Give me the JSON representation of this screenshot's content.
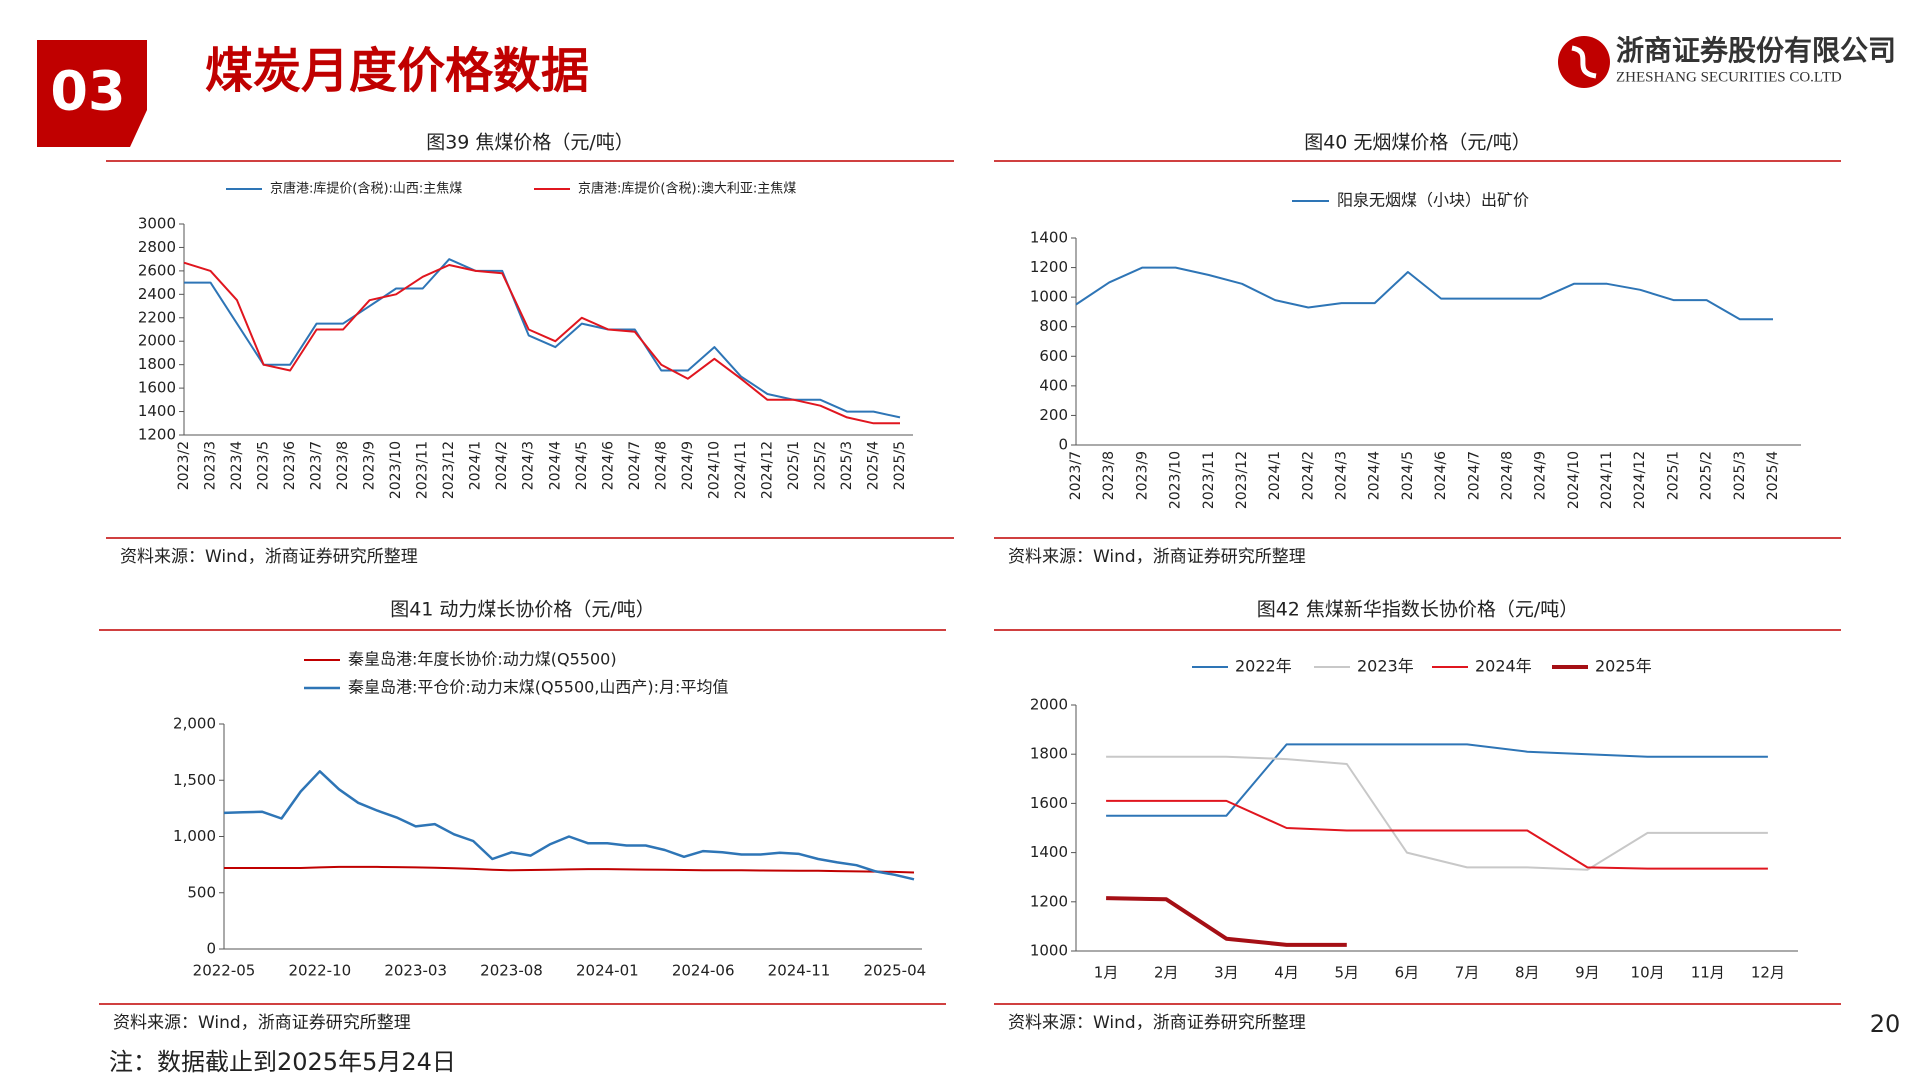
{
  "header": {
    "section": "03",
    "title": "煤炭月度价格数据",
    "company": "浙商证券股份有限公司",
    "company_en": "ZHESHANG SECURITIES CO.LTD"
  },
  "chart_data": [
    {
      "type": "line",
      "title": "图39  焦煤价格（元/吨）",
      "source": "资料来源：Wind，浙商证券研究所整理",
      "legend": "top",
      "categories": [
        "2023/2",
        "2023/3",
        "2023/4",
        "2023/5",
        "2023/6",
        "2023/7",
        "2023/8",
        "2023/9",
        "2023/10",
        "2023/11",
        "2023/12",
        "2024/1",
        "2024/2",
        "2024/3",
        "2024/4",
        "2024/5",
        "2024/6",
        "2024/7",
        "2024/8",
        "2024/9",
        "2024/10",
        "2024/11",
        "2024/12",
        "2025/1",
        "2025/2",
        "2025/3",
        "2025/4",
        "2025/5"
      ],
      "series": [
        {
          "name": "京唐港:库提价(含税):山西:主焦煤",
          "color": "#2e75b6",
          "width": 2,
          "values": [
            2500,
            2500,
            2150,
            1800,
            1800,
            2150,
            2150,
            2300,
            2450,
            2450,
            2700,
            2600,
            2600,
            2050,
            1950,
            2150,
            2100,
            2100,
            1750,
            1750,
            1950,
            1700,
            1550,
            1500,
            1500,
            1400,
            1400,
            1350
          ]
        },
        {
          "name": "京唐港:库提价(含税):澳大利亚:主焦煤",
          "color": "#e0161f",
          "width": 2,
          "values": [
            2670,
            2600,
            2350,
            1800,
            1750,
            2100,
            2100,
            2350,
            2400,
            2550,
            2650,
            2600,
            2580,
            2100,
            2000,
            2200,
            2100,
            2080,
            1800,
            1680,
            1850,
            1680,
            1500,
            1500,
            1450,
            1350,
            1300,
            1300
          ]
        }
      ],
      "ylim": [
        1200,
        3000
      ],
      "yticks": [
        1200,
        1400,
        1600,
        1800,
        2000,
        2200,
        2400,
        2600,
        2800,
        3000
      ]
    },
    {
      "type": "line",
      "title": "图40  无烟煤价格（元/吨）",
      "source": "资料来源：Wind，浙商证券研究所整理",
      "legend": "top",
      "categories": [
        "2023/7",
        "2023/8",
        "2023/9",
        "2023/10",
        "2023/11",
        "2023/12",
        "2024/1",
        "2024/2",
        "2024/3",
        "2024/4",
        "2024/5",
        "2024/6",
        "2024/7",
        "2024/8",
        "2024/9",
        "2024/10",
        "2024/11",
        "2024/12",
        "2025/1",
        "2025/2",
        "2025/3",
        "2025/4"
      ],
      "series": [
        {
          "name": "阳泉无烟煤（小块）出矿价",
          "color": "#2e75b6",
          "width": 2,
          "values": [
            950,
            1100,
            1200,
            1200,
            1150,
            1090,
            980,
            930,
            960,
            960,
            1170,
            990,
            990,
            990,
            990,
            1090,
            1090,
            1050,
            980,
            980,
            850,
            850
          ]
        }
      ],
      "ylim": [
        0,
        1400
      ],
      "yticks": [
        0,
        200,
        400,
        600,
        800,
        1000,
        1200,
        1400
      ]
    },
    {
      "type": "line",
      "title": "图41  动力煤长协价格（元/吨）",
      "source": "资料来源：Wind，浙商证券研究所整理",
      "legend": "top-left",
      "categories": [
        "2022-05",
        null,
        null,
        null,
        null,
        "2022-10",
        null,
        null,
        null,
        null,
        "2023-03",
        null,
        null,
        null,
        null,
        "2023-08",
        null,
        null,
        null,
        null,
        "2024-01",
        null,
        null,
        null,
        null,
        "2024-06",
        null,
        null,
        null,
        null,
        "2024-11",
        null,
        null,
        null,
        null,
        "2025-04",
        null
      ],
      "series": [
        {
          "name": "秦皇岛港:年度长协价:动力煤(Q5500)",
          "color": "#c00000",
          "width": 2,
          "values": [
            720,
            720,
            720,
            720,
            720,
            725,
            730,
            730,
            730,
            728,
            725,
            722,
            718,
            712,
            705,
            700,
            702,
            705,
            708,
            710,
            710,
            708,
            706,
            704,
            702,
            700,
            700,
            700,
            698,
            697,
            696,
            695,
            692,
            690,
            688,
            685,
            680
          ]
        },
        {
          "name": "秦皇岛港:平仓价:动力末煤(Q5500,山西产):月:平均值",
          "color": "#2e75b6",
          "width": 2.5,
          "values": [
            1210,
            1215,
            1220,
            1160,
            1400,
            1580,
            1420,
            1300,
            1230,
            1170,
            1090,
            1110,
            1020,
            960,
            800,
            860,
            830,
            930,
            1000,
            940,
            940,
            920,
            920,
            880,
            820,
            870,
            860,
            840,
            840,
            855,
            845,
            800,
            770,
            745,
            690,
            660,
            620
          ]
        }
      ],
      "ylim": [
        0,
        2000
      ],
      "yticks": [
        0,
        500,
        {
          "value": 1000,
          "label": "1,000"
        },
        {
          "value": 1500,
          "label": "1,500"
        },
        {
          "value": 2000,
          "label": "2,000"
        }
      ]
    },
    {
      "type": "line",
      "title": "图42  焦煤新华指数长协价格（元/吨）",
      "source": "资料来源：Wind，浙商证券研究所整理",
      "legend": "top",
      "categories": [
        "1月",
        "2月",
        "3月",
        "4月",
        "5月",
        "6月",
        "7月",
        "8月",
        "9月",
        "10月",
        "11月",
        "12月"
      ],
      "series": [
        {
          "name": "2022年",
          "color": "#2e75b6",
          "width": 2,
          "values": [
            1550,
            1550,
            1550,
            1840,
            1840,
            1840,
            1840,
            1810,
            1800,
            1790,
            1790,
            1790
          ]
        },
        {
          "name": "2023年",
          "color": "#c8c8c8",
          "width": 2,
          "values": [
            1790,
            1790,
            1790,
            1780,
            1760,
            1400,
            1340,
            1340,
            1330,
            1480,
            1480,
            1480
          ]
        },
        {
          "name": "2024年",
          "color": "#e0161f",
          "width": 2,
          "values": [
            1610,
            1610,
            1610,
            1500,
            1490,
            1490,
            1490,
            1490,
            1340,
            1335,
            1335,
            1335
          ]
        },
        {
          "name": "2025年",
          "color": "#a50f15",
          "width": 4,
          "values": [
            1215,
            1210,
            1050,
            1025,
            1025,
            null,
            null,
            null,
            null,
            null,
            null,
            null
          ]
        }
      ],
      "ylim": [
        1000,
        2000
      ],
      "yticks": [
        1000,
        1200,
        1400,
        1600,
        1800,
        2000
      ]
    }
  ],
  "footer": {
    "note": "注：数据截止到2025年5月24日",
    "page": "20"
  }
}
